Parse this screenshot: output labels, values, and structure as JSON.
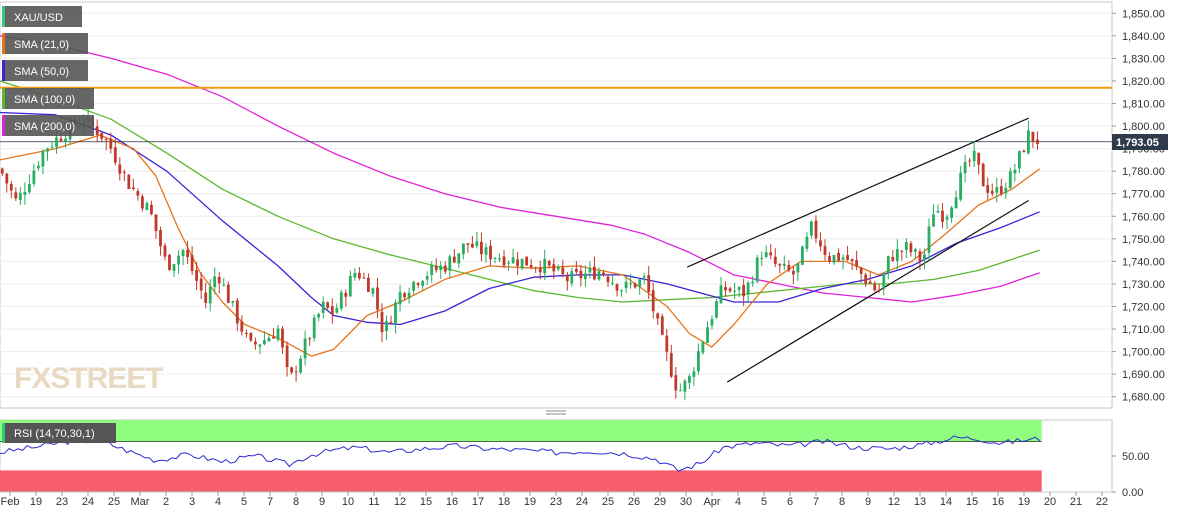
{
  "legend": [
    {
      "label": "XAU/USD",
      "swatch": "#2ecc71"
    },
    {
      "label": "SMA (21,0)",
      "swatch": "#e8741a"
    },
    {
      "label": "SMA (50,0)",
      "swatch": "#3b22d6"
    },
    {
      "label": "SMA (100,0)",
      "swatch": "#5cb82d"
    },
    {
      "label": "SMA (200,0)",
      "swatch": "#e022d8"
    }
  ],
  "watermark": "FXSTREET",
  "price_tag": "1,793.05",
  "rsi_label": "RSI (14,70,30,1)",
  "colors": {
    "up": "#27ae60",
    "down": "#c0392b",
    "sma21": "#e8741a",
    "sma50": "#3b22d6",
    "sma100": "#5cb82d",
    "sma200": "#e022d8",
    "resistance": "#f39c12",
    "rsi_line": "#2b2bd0",
    "rsi_overbought": "#7CFC6A",
    "rsi_oversold": "#f44b5a"
  },
  "chart_data": {
    "type": "candlestick",
    "title": "XAU/USD",
    "timeframe": "4h",
    "ylim": [
      1675,
      1855
    ],
    "y_ticks": [
      "1,680.00",
      "1,690.00",
      "1,700.00",
      "1,710.00",
      "1,720.00",
      "1,730.00",
      "1,740.00",
      "1,750.00",
      "1,760.00",
      "1,770.00",
      "1,780.00",
      "1,790.00",
      "1,800.00",
      "1,810.00",
      "1,820.00",
      "1,830.00",
      "1,840.00",
      "1,850.00"
    ],
    "x_ticks": [
      "Feb",
      "19",
      "23",
      "24",
      "25",
      "Mar",
      "2",
      "3",
      "4",
      "5",
      "7",
      "8",
      "9",
      "10",
      "11",
      "12",
      "15",
      "16",
      "17",
      "18",
      "19",
      "23",
      "24",
      "25",
      "26",
      "29",
      "30",
      "Apr",
      "4",
      "5",
      "6",
      "7",
      "8",
      "9",
      "12",
      "13",
      "14",
      "15",
      "16",
      "19",
      "20",
      "21",
      "22"
    ],
    "last_price": 1793.05,
    "resistance_level": 1817,
    "channel_upper": [
      [
        0.618,
        1737.5
      ],
      [
        0.925,
        1803.5
      ]
    ],
    "channel_lower": [
      [
        0.654,
        1686.5
      ],
      [
        0.925,
        1767
      ]
    ],
    "close_anchors": [
      [
        0.0,
        1781
      ],
      [
        0.015,
        1766
      ],
      [
        0.04,
        1790
      ],
      [
        0.06,
        1798
      ],
      [
        0.075,
        1803
      ],
      [
        0.09,
        1797
      ],
      [
        0.1,
        1790
      ],
      [
        0.115,
        1775
      ],
      [
        0.135,
        1762
      ],
      [
        0.15,
        1738
      ],
      [
        0.165,
        1745
      ],
      [
        0.185,
        1722
      ],
      [
        0.195,
        1736
      ],
      [
        0.205,
        1724
      ],
      [
        0.225,
        1702
      ],
      [
        0.24,
        1706
      ],
      [
        0.25,
        1710
      ],
      [
        0.26,
        1686
      ],
      [
        0.27,
        1698
      ],
      [
        0.29,
        1720
      ],
      [
        0.3,
        1717
      ],
      [
        0.32,
        1736
      ],
      [
        0.335,
        1728
      ],
      [
        0.345,
        1708
      ],
      [
        0.36,
        1726
      ],
      [
        0.38,
        1734
      ],
      [
        0.4,
        1738
      ],
      [
        0.42,
        1748
      ],
      [
        0.435,
        1744
      ],
      [
        0.45,
        1742
      ],
      [
        0.47,
        1740
      ],
      [
        0.49,
        1738
      ],
      [
        0.51,
        1732
      ],
      [
        0.54,
        1736
      ],
      [
        0.56,
        1728
      ],
      [
        0.58,
        1732
      ],
      [
        0.595,
        1705
      ],
      [
        0.61,
        1682
      ],
      [
        0.62,
        1688
      ],
      [
        0.635,
        1710
      ],
      [
        0.65,
        1728
      ],
      [
        0.67,
        1726
      ],
      [
        0.685,
        1744
      ],
      [
        0.7,
        1737
      ],
      [
        0.715,
        1734
      ],
      [
        0.73,
        1755
      ],
      [
        0.745,
        1742
      ],
      [
        0.76,
        1742
      ],
      [
        0.775,
        1734
      ],
      [
        0.79,
        1726
      ],
      [
        0.8,
        1742
      ],
      [
        0.815,
        1746
      ],
      [
        0.83,
        1740
      ],
      [
        0.84,
        1764
      ],
      [
        0.85,
        1760
      ],
      [
        0.865,
        1778
      ],
      [
        0.875,
        1787
      ],
      [
        0.885,
        1774
      ],
      [
        0.895,
        1770
      ],
      [
        0.91,
        1778
      ],
      [
        0.925,
        1796
      ],
      [
        0.935,
        1793
      ]
    ],
    "sma21": [
      [
        0.0,
        1785
      ],
      [
        0.05,
        1790
      ],
      [
        0.09,
        1796
      ],
      [
        0.12,
        1790
      ],
      [
        0.14,
        1778
      ],
      [
        0.16,
        1755
      ],
      [
        0.18,
        1735
      ],
      [
        0.2,
        1722
      ],
      [
        0.22,
        1712
      ],
      [
        0.25,
        1706
      ],
      [
        0.28,
        1698
      ],
      [
        0.3,
        1701
      ],
      [
        0.33,
        1716
      ],
      [
        0.36,
        1722
      ],
      [
        0.4,
        1732
      ],
      [
        0.44,
        1738
      ],
      [
        0.48,
        1737
      ],
      [
        0.52,
        1738
      ],
      [
        0.56,
        1734
      ],
      [
        0.6,
        1720
      ],
      [
        0.62,
        1708
      ],
      [
        0.64,
        1702
      ],
      [
        0.66,
        1712
      ],
      [
        0.69,
        1730
      ],
      [
        0.72,
        1740
      ],
      [
        0.76,
        1740
      ],
      [
        0.79,
        1734
      ],
      [
        0.82,
        1740
      ],
      [
        0.85,
        1752
      ],
      [
        0.88,
        1765
      ],
      [
        0.91,
        1772
      ],
      [
        0.935,
        1781
      ]
    ],
    "sma50": [
      [
        0.0,
        1806
      ],
      [
        0.05,
        1805
      ],
      [
        0.1,
        1796
      ],
      [
        0.15,
        1780
      ],
      [
        0.2,
        1758
      ],
      [
        0.25,
        1738
      ],
      [
        0.28,
        1724
      ],
      [
        0.3,
        1716
      ],
      [
        0.33,
        1713
      ],
      [
        0.36,
        1712
      ],
      [
        0.4,
        1718
      ],
      [
        0.44,
        1728
      ],
      [
        0.48,
        1733
      ],
      [
        0.52,
        1734
      ],
      [
        0.56,
        1734
      ],
      [
        0.6,
        1730
      ],
      [
        0.63,
        1726
      ],
      [
        0.66,
        1722
      ],
      [
        0.7,
        1722
      ],
      [
        0.74,
        1728
      ],
      [
        0.78,
        1732
      ],
      [
        0.82,
        1738
      ],
      [
        0.86,
        1748
      ],
      [
        0.9,
        1755
      ],
      [
        0.935,
        1762
      ]
    ],
    "sma100": [
      [
        0.0,
        1820
      ],
      [
        0.05,
        1812
      ],
      [
        0.1,
        1803
      ],
      [
        0.15,
        1788
      ],
      [
        0.2,
        1772
      ],
      [
        0.25,
        1760
      ],
      [
        0.3,
        1750
      ],
      [
        0.35,
        1743
      ],
      [
        0.4,
        1737
      ],
      [
        0.44,
        1732
      ],
      [
        0.48,
        1727
      ],
      [
        0.52,
        1724
      ],
      [
        0.56,
        1722
      ],
      [
        0.6,
        1723
      ],
      [
        0.64,
        1724
      ],
      [
        0.68,
        1726
      ],
      [
        0.72,
        1728
      ],
      [
        0.76,
        1730
      ],
      [
        0.8,
        1730
      ],
      [
        0.84,
        1732
      ],
      [
        0.88,
        1736
      ],
      [
        0.935,
        1745
      ]
    ],
    "sma200": [
      [
        0.0,
        1840
      ],
      [
        0.05,
        1836
      ],
      [
        0.1,
        1830
      ],
      [
        0.15,
        1823
      ],
      [
        0.2,
        1813
      ],
      [
        0.25,
        1800
      ],
      [
        0.3,
        1788
      ],
      [
        0.35,
        1778
      ],
      [
        0.4,
        1770
      ],
      [
        0.45,
        1764
      ],
      [
        0.5,
        1760
      ],
      [
        0.55,
        1756
      ],
      [
        0.58,
        1752
      ],
      [
        0.62,
        1744
      ],
      [
        0.66,
        1734
      ],
      [
        0.7,
        1730
      ],
      [
        0.74,
        1726
      ],
      [
        0.78,
        1724
      ],
      [
        0.82,
        1722
      ],
      [
        0.86,
        1725
      ],
      [
        0.9,
        1729
      ],
      [
        0.935,
        1735
      ]
    ],
    "rsi": {
      "ylim": [
        0,
        100
      ],
      "y_ticks": [
        "50.00",
        "0.00"
      ],
      "overbought": 70,
      "oversold": 30,
      "series": [
        [
          0.0,
          55
        ],
        [
          0.03,
          62
        ],
        [
          0.06,
          70
        ],
        [
          0.09,
          72
        ],
        [
          0.11,
          60
        ],
        [
          0.14,
          44
        ],
        [
          0.17,
          52
        ],
        [
          0.2,
          42
        ],
        [
          0.23,
          50
        ],
        [
          0.26,
          38
        ],
        [
          0.28,
          52
        ],
        [
          0.3,
          58
        ],
        [
          0.32,
          62
        ],
        [
          0.35,
          55
        ],
        [
          0.38,
          60
        ],
        [
          0.41,
          64
        ],
        [
          0.44,
          60
        ],
        [
          0.47,
          58
        ],
        [
          0.5,
          55
        ],
        [
          0.53,
          57
        ],
        [
          0.56,
          54
        ],
        [
          0.59,
          46
        ],
        [
          0.61,
          30
        ],
        [
          0.63,
          40
        ],
        [
          0.65,
          62
        ],
        [
          0.68,
          68
        ],
        [
          0.71,
          64
        ],
        [
          0.74,
          70
        ],
        [
          0.77,
          62
        ],
        [
          0.8,
          60
        ],
        [
          0.83,
          66
        ],
        [
          0.86,
          76
        ],
        [
          0.88,
          74
        ],
        [
          0.9,
          68
        ],
        [
          0.92,
          72
        ],
        [
          0.935,
          74
        ]
      ]
    }
  }
}
